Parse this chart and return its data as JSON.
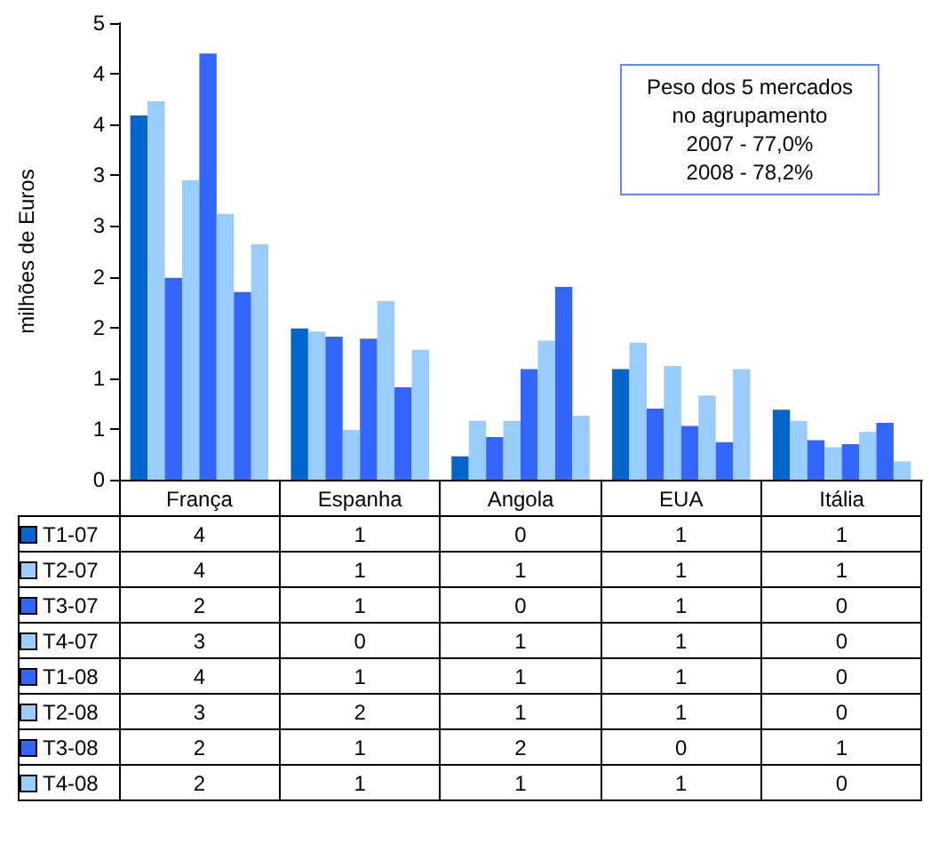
{
  "chart_data": {
    "type": "bar",
    "ylabel": "milhões de Euros",
    "categories": [
      "França",
      "Espanha",
      "Angola",
      "EUA",
      "Itália"
    ],
    "series": [
      {
        "name": "T1-07",
        "color": "#0066cc",
        "values": [
          3.59,
          1.49,
          0.23,
          1.09,
          0.69
        ],
        "value_labels": [
          "4",
          "1",
          "0",
          "1",
          "1"
        ]
      },
      {
        "name": "T2-07",
        "color": "#99ccff",
        "values": [
          3.73,
          1.46,
          0.58,
          1.35,
          0.58
        ],
        "value_labels": [
          "4",
          "1",
          "1",
          "1",
          "1"
        ]
      },
      {
        "name": "T3-07",
        "color": "#3366ff",
        "values": [
          1.99,
          1.41,
          0.42,
          0.7,
          0.39
        ],
        "value_labels": [
          "2",
          "1",
          "0",
          "1",
          "0"
        ]
      },
      {
        "name": "T4-07",
        "color": "#99ccff",
        "values": [
          2.95,
          0.49,
          0.58,
          1.12,
          0.32
        ],
        "value_labels": [
          "3",
          "0",
          "1",
          "1",
          "0"
        ]
      },
      {
        "name": "T1-08",
        "color": "#3366ff",
        "values": [
          4.2,
          1.39,
          1.09,
          0.53,
          0.35
        ],
        "value_labels": [
          "4",
          "1",
          "1",
          "1",
          "0"
        ]
      },
      {
        "name": "T2-08",
        "color": "#99ccff",
        "values": [
          2.62,
          1.76,
          1.37,
          0.83,
          0.47
        ],
        "value_labels": [
          "3",
          "2",
          "1",
          "1",
          "0"
        ]
      },
      {
        "name": "T3-08",
        "color": "#3366ff",
        "values": [
          1.85,
          0.91,
          1.9,
          0.37,
          0.56
        ],
        "value_labels": [
          "2",
          "1",
          "2",
          "0",
          "1"
        ]
      },
      {
        "name": "T4-08",
        "color": "#99ccff",
        "values": [
          2.32,
          1.28,
          0.63,
          1.09,
          0.18
        ],
        "value_labels": [
          "2",
          "1",
          "1",
          "1",
          "0"
        ]
      }
    ],
    "ylim": [
      0,
      4.5
    ],
    "yticks": [
      0,
      {
        "value": 0.5,
        "label": "1"
      },
      1,
      {
        "value": 1.5,
        "label": "2"
      },
      2,
      {
        "value": 2.5,
        "label": "3"
      },
      3,
      {
        "value": 3.5,
        "label": "4"
      },
      4,
      {
        "value": 4.5,
        "label": "5"
      }
    ],
    "grid": false,
    "legend": "bottom left",
    "annotations": [
      "Peso dos 5 mercados\nno agrupamento\n2007 - 77,0%\n2008 - 78,2%"
    ]
  }
}
